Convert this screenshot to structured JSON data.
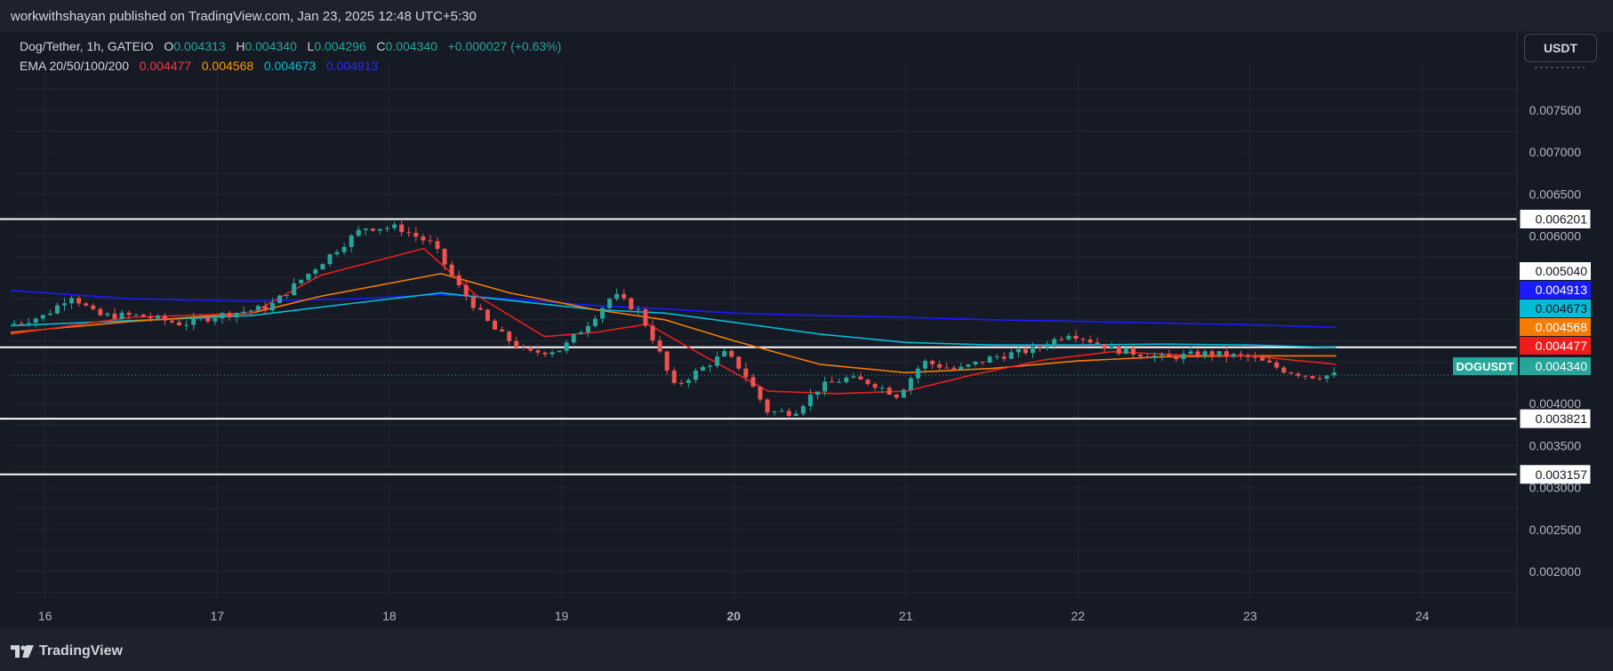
{
  "header": {
    "published_by": "workwithshayan published on TradingView.com, Jan 23, 2025 12:48 UTC+5:30"
  },
  "legend": {
    "symbol": "Dog/Tether, 1h, GATEIO",
    "o_label": "O",
    "o_value": "0.004313",
    "h_label": "H",
    "h_value": "0.004340",
    "l_label": "L",
    "l_value": "0.004296",
    "c_label": "C",
    "c_value": "0.004340",
    "change": "+0.000027 (+0.63%)",
    "ema_label": "EMA 20/50/100/200",
    "ema20": "0.004477",
    "ema50": "0.004568",
    "ema100": "0.004673",
    "ema200": "0.004913"
  },
  "currency_button": "USDT",
  "footer": {
    "brand": "TradingView"
  },
  "colors": {
    "up": "#26a69a",
    "down": "#ef5350",
    "ema20": "#e91e1e",
    "ema50": "#f57c00",
    "ema100": "#00bcd4",
    "ema200": "#1a1aff"
  },
  "chart_data": {
    "type": "candlestick",
    "symbol": "DOGUSDT",
    "timeframe": "1h",
    "ylim": [
      0.00165,
      0.00805
    ],
    "y_ticks": [
      "0.002000",
      "0.002500",
      "0.003000",
      "0.003500",
      "0.004000",
      "0.006000",
      "0.006500",
      "0.007000",
      "0.007500"
    ],
    "x_ticks": [
      "16",
      "17",
      "18",
      "19",
      "20",
      "21",
      "22",
      "23",
      "24"
    ],
    "x_tick_days": [
      16,
      17,
      18,
      19,
      20,
      21,
      22,
      23,
      24
    ],
    "xlim_days": [
      15.8,
      24.55
    ],
    "horizontal_levels": [
      {
        "label": "0.006201",
        "value": 0.006201
      },
      {
        "label": "0.004673",
        "value": 0.004673,
        "axis_label": false
      },
      {
        "label": "0.003821",
        "value": 0.003821
      },
      {
        "label": "0.003157",
        "value": 0.003157
      }
    ],
    "price_labels": [
      {
        "text": "0.005040",
        "value": 0.00504,
        "bg": "#ffffff",
        "fg": "#131722"
      },
      {
        "text": "0.004913",
        "value": 0.004913,
        "bg": "#1a1aff",
        "fg": "#ffffff"
      },
      {
        "text": "0.004673",
        "value": 0.004673,
        "bg": "#00bcd4",
        "fg": "#131722"
      },
      {
        "text": "0.004568",
        "value": 0.004568,
        "bg": "#f57c00",
        "fg": "#ffffff"
      },
      {
        "text": "0.004477",
        "value": 0.004477,
        "bg": "#ef1c1c",
        "fg": "#ffffff"
      },
      {
        "text": "0.004340",
        "value": 0.00434,
        "bg": "#26a69a",
        "fg": "#ffffff",
        "tag": "DOGUSDT"
      }
    ],
    "price_path": [
      [
        15.8,
        0.00495
      ],
      [
        16.0,
        0.00505
      ],
      [
        16.15,
        0.0053
      ],
      [
        16.3,
        0.00505
      ],
      [
        16.55,
        0.00505
      ],
      [
        16.8,
        0.00495
      ],
      [
        17.0,
        0.00505
      ],
      [
        17.3,
        0.00515
      ],
      [
        17.5,
        0.0055
      ],
      [
        17.7,
        0.00585
      ],
      [
        17.85,
        0.0061
      ],
      [
        18.05,
        0.0061
      ],
      [
        18.25,
        0.0059
      ],
      [
        18.4,
        0.0054
      ],
      [
        18.6,
        0.0049
      ],
      [
        18.8,
        0.0046
      ],
      [
        19.0,
        0.00465
      ],
      [
        19.15,
        0.00495
      ],
      [
        19.3,
        0.0053
      ],
      [
        19.45,
        0.0051
      ],
      [
        19.55,
        0.0047
      ],
      [
        19.65,
        0.0042
      ],
      [
        19.8,
        0.0044
      ],
      [
        19.95,
        0.0046
      ],
      [
        20.05,
        0.0044
      ],
      [
        20.2,
        0.0039
      ],
      [
        20.35,
        0.0039
      ],
      [
        20.5,
        0.0042
      ],
      [
        20.65,
        0.0043
      ],
      [
        20.8,
        0.00425
      ],
      [
        20.95,
        0.0041
      ],
      [
        21.1,
        0.0045
      ],
      [
        21.3,
        0.0044
      ],
      [
        21.5,
        0.00455
      ],
      [
        21.75,
        0.00465
      ],
      [
        21.95,
        0.00485
      ],
      [
        22.2,
        0.00465
      ],
      [
        22.5,
        0.00455
      ],
      [
        22.75,
        0.0046
      ],
      [
        23.0,
        0.00455
      ],
      [
        23.2,
        0.0044
      ],
      [
        23.35,
        0.00433
      ],
      [
        23.5,
        0.00434
      ]
    ],
    "ema20_path": [
      [
        15.8,
        0.00483
      ],
      [
        16.5,
        0.00503
      ],
      [
        17.2,
        0.00508
      ],
      [
        17.6,
        0.00553
      ],
      [
        18.2,
        0.00585
      ],
      [
        18.5,
        0.0053
      ],
      [
        18.9,
        0.0048
      ],
      [
        19.2,
        0.00485
      ],
      [
        19.5,
        0.00495
      ],
      [
        19.8,
        0.0046
      ],
      [
        20.2,
        0.00415
      ],
      [
        20.6,
        0.00412
      ],
      [
        21.0,
        0.00415
      ],
      [
        21.4,
        0.00435
      ],
      [
        21.8,
        0.00452
      ],
      [
        22.2,
        0.00462
      ],
      [
        22.6,
        0.00458
      ],
      [
        23.0,
        0.00457
      ],
      [
        23.5,
        0.00447
      ]
    ],
    "ema50_path": [
      [
        15.8,
        0.00485
      ],
      [
        16.5,
        0.00498
      ],
      [
        17.2,
        0.00508
      ],
      [
        17.6,
        0.00528
      ],
      [
        18.3,
        0.00555
      ],
      [
        18.7,
        0.00532
      ],
      [
        19.2,
        0.00512
      ],
      [
        19.6,
        0.005
      ],
      [
        20.0,
        0.00475
      ],
      [
        20.5,
        0.00447
      ],
      [
        21.0,
        0.00437
      ],
      [
        21.5,
        0.00442
      ],
      [
        22.0,
        0.00451
      ],
      [
        22.5,
        0.00456
      ],
      [
        23.0,
        0.00457
      ],
      [
        23.5,
        0.00457
      ]
    ],
    "ema100_path": [
      [
        15.8,
        0.00493
      ],
      [
        16.5,
        0.00499
      ],
      [
        17.2,
        0.00505
      ],
      [
        17.8,
        0.0052
      ],
      [
        18.3,
        0.00532
      ],
      [
        18.7,
        0.00523
      ],
      [
        19.2,
        0.00512
      ],
      [
        19.6,
        0.00508
      ],
      [
        20.0,
        0.00497
      ],
      [
        20.5,
        0.00483
      ],
      [
        21.0,
        0.00473
      ],
      [
        21.5,
        0.0047
      ],
      [
        22.0,
        0.0047
      ],
      [
        22.5,
        0.00471
      ],
      [
        23.0,
        0.0047
      ],
      [
        23.5,
        0.00467
      ]
    ],
    "ema200_path": [
      [
        15.8,
        0.00535
      ],
      [
        16.5,
        0.00525
      ],
      [
        17.2,
        0.00522
      ],
      [
        17.8,
        0.00525
      ],
      [
        18.3,
        0.0053
      ],
      [
        18.7,
        0.00525
      ],
      [
        19.2,
        0.00517
      ],
      [
        19.6,
        0.00513
      ],
      [
        20.0,
        0.00508
      ],
      [
        20.5,
        0.00505
      ],
      [
        21.0,
        0.00503
      ],
      [
        21.5,
        0.005
      ],
      [
        22.0,
        0.00498
      ],
      [
        22.5,
        0.00496
      ],
      [
        23.0,
        0.00494
      ],
      [
        23.5,
        0.00491
      ]
    ]
  }
}
